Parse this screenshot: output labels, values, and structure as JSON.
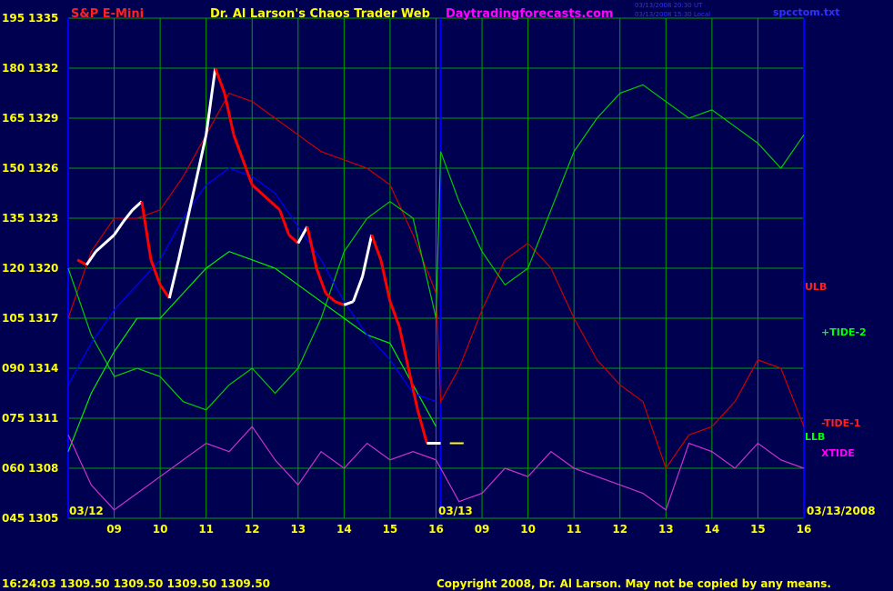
{
  "header": {
    "instrument": "S&P E-Mini",
    "title": "Dr. Al Larson's Chaos Trader Web",
    "site": "Daytradingforecasts.com",
    "stamp_line1": "03/13/2008 20:30 UT",
    "stamp_line2": "03/13/2008 15:30 Local",
    "file": "spcctom.txt"
  },
  "footer": {
    "quote": "16:24:03  1309.50  1309.50  1309.50  1309.50",
    "copyright": "Copyright 2008, Dr. Al Larson. May not be copied by any means."
  },
  "colors": {
    "background": "#000050",
    "grid": "#00a000",
    "price_up": "#ffffff",
    "price_down": "#ff0000",
    "ulb": "#cc0000",
    "tide": "#00cc00",
    "llb": "#00ee00",
    "xtide": "#cc33cc",
    "blue_curve": "#0000ff",
    "axis_text": "#ffff00",
    "label_red": "#ff2020",
    "label_green": "#00ff00",
    "label_magenta": "#ff00ff"
  },
  "chart_data": {
    "type": "line",
    "title": "S&P E-Mini",
    "y_left_labels": [
      "195",
      "180",
      "165",
      "150",
      "135",
      "120",
      "105",
      "090",
      "075",
      "060",
      "045"
    ],
    "y_right_labels": [
      "1335",
      "1332",
      "1329",
      "1326",
      "1323",
      "1320",
      "1317",
      "1314",
      "1311",
      "1308",
      "1305"
    ],
    "ylim": [
      1305,
      1335
    ],
    "x_hours_day1": [
      "09",
      "10",
      "11",
      "12",
      "13",
      "14",
      "15",
      "16"
    ],
    "x_hours_day2": [
      "09",
      "10",
      "11",
      "12",
      "13",
      "14",
      "15",
      "16"
    ],
    "date_start": "03/12",
    "date_mid": "03/13",
    "date_end": "03/13/2008",
    "current_price": 1309.5,
    "series_labels": [
      "ULB",
      "+TIDE-2",
      "-TIDE-1",
      "LLB",
      "XTIDE"
    ],
    "series": [
      {
        "name": "price",
        "x": [
          8.2,
          8.4,
          8.6,
          8.8,
          9.0,
          9.2,
          9.4,
          9.6,
          9.8,
          10.0,
          10.2,
          10.4,
          10.6,
          10.8,
          11.0,
          11.2,
          11.4,
          11.6,
          11.8,
          12.0,
          12.2,
          12.4,
          12.6,
          12.8,
          13.0,
          13.2,
          13.4,
          13.6,
          13.8,
          14.0,
          14.2,
          14.4,
          14.6,
          14.8,
          15.0,
          15.2,
          15.4,
          15.6,
          15.8,
          16.0,
          16.1
        ],
        "values": [
          1320.5,
          1320.2,
          1321.0,
          1321.5,
          1322.0,
          1322.8,
          1323.5,
          1324.0,
          1320.5,
          1319.0,
          1318.2,
          1320.5,
          1323.0,
          1325.5,
          1328.0,
          1332.0,
          1330.5,
          1328.0,
          1326.5,
          1325.0,
          1324.5,
          1324.0,
          1323.5,
          1322.0,
          1321.5,
          1322.5,
          1320.0,
          1318.5,
          1318.0,
          1317.8,
          1318.0,
          1319.5,
          1322.0,
          1320.5,
          1318.0,
          1316.5,
          1314.0,
          1311.5,
          1309.5,
          1309.5,
          1309.5
        ]
      },
      {
        "name": "ULB",
        "x": [
          8.0,
          8.5,
          9.0,
          9.5,
          10.0,
          10.5,
          11.0,
          11.5,
          12.0,
          12.5,
          13.0,
          13.5,
          14.0,
          14.5,
          15.0,
          15.5,
          16.0,
          16.1,
          16.5,
          17.0,
          17.5,
          18.0,
          18.5,
          19.0,
          19.5,
          20.0,
          20.5,
          21.0,
          21.5,
          22.0,
          22.5,
          23.0,
          23.5,
          24.0
        ],
        "values": [
          1317.0,
          1321.0,
          1323.0,
          1323.0,
          1323.5,
          1325.5,
          1328.0,
          1330.5,
          1330.0,
          1329.0,
          1328.0,
          1327.0,
          1326.5,
          1326.0,
          1325.0,
          1322.0,
          1318.5,
          1312.0,
          1314.0,
          1317.5,
          1320.5,
          1321.5,
          1320.0,
          1317.0,
          1314.5,
          1313.0,
          1312.0,
          1308.0,
          1310.0,
          1310.5,
          1312.0,
          1314.5,
          1314.0,
          1310.5
        ]
      },
      {
        "name": "+TIDE-2",
        "x": [
          8.0,
          8.5,
          9.0,
          9.5,
          10.0,
          10.5,
          11.0,
          11.5,
          12.0,
          12.5,
          13.0,
          13.5,
          14.0,
          14.5,
          15.0,
          15.5,
          16.0,
          16.1,
          16.5,
          17.0,
          17.5,
          18.0,
          18.5,
          19.0,
          19.5,
          20.0,
          20.5,
          21.0,
          21.5,
          22.0,
          22.5,
          23.0,
          23.5,
          24.0
        ],
        "values": [
          1320.0,
          1316.0,
          1313.5,
          1314.0,
          1313.5,
          1312.0,
          1311.5,
          1313.0,
          1314.0,
          1312.5,
          1314.0,
          1317.0,
          1321.0,
          1323.0,
          1324.0,
          1323.0,
          1317.0,
          1327.0,
          1324.0,
          1321.0,
          1319.0,
          1320.0,
          1323.5,
          1327.0,
          1329.0,
          1330.5,
          1331.0,
          1330.0,
          1329.0,
          1329.5,
          1328.5,
          1327.5,
          1326.0,
          1328.0
        ]
      },
      {
        "name": "LLB",
        "x": [
          8.0,
          8.5,
          9.0,
          9.5,
          10.0,
          10.5,
          11.0,
          11.5,
          12.0,
          12.5,
          13.0,
          13.5,
          14.0,
          14.5,
          15.0,
          15.5,
          16.0
        ],
        "values": [
          1309.0,
          1312.5,
          1315.0,
          1317.0,
          1317.0,
          1318.5,
          1320.0,
          1321.0,
          1320.5,
          1320.0,
          1319.0,
          1318.0,
          1317.0,
          1316.0,
          1315.5,
          1313.0,
          1310.5
        ]
      },
      {
        "name": "blue",
        "x": [
          8.0,
          8.5,
          9.0,
          9.5,
          10.0,
          10.5,
          11.0,
          11.5,
          12.0,
          12.5,
          13.0,
          13.5,
          14.0,
          14.5,
          15.0,
          15.5,
          16.0
        ],
        "values": [
          1313.0,
          1315.5,
          1317.5,
          1319.0,
          1320.5,
          1323.0,
          1325.0,
          1326.0,
          1325.5,
          1324.5,
          1322.5,
          1320.5,
          1318.0,
          1316.0,
          1314.5,
          1312.5,
          1312.0
        ]
      },
      {
        "name": "XTIDE",
        "x": [
          8.0,
          8.5,
          9.0,
          9.5,
          10.0,
          10.5,
          11.0,
          11.5,
          12.0,
          12.5,
          13.0,
          13.5,
          14.0,
          14.5,
          15.0,
          15.5,
          16.0,
          16.5,
          17.0,
          17.5,
          18.0,
          18.5,
          19.0,
          19.5,
          20.0,
          20.5,
          21.0,
          21.5,
          22.0,
          22.5,
          23.0,
          23.5,
          24.0
        ],
        "values": [
          1310.0,
          1307.0,
          1305.5,
          1306.5,
          1307.5,
          1308.5,
          1309.5,
          1309.0,
          1310.5,
          1308.5,
          1307.0,
          1309.0,
          1308.0,
          1309.5,
          1308.5,
          1309.0,
          1308.5,
          1306.0,
          1306.5,
          1308.0,
          1307.5,
          1309.0,
          1308.0,
          1307.5,
          1307.0,
          1306.5,
          1305.5,
          1309.5,
          1309.0,
          1308.0,
          1309.5,
          1308.5,
          1308.0
        ]
      }
    ]
  }
}
